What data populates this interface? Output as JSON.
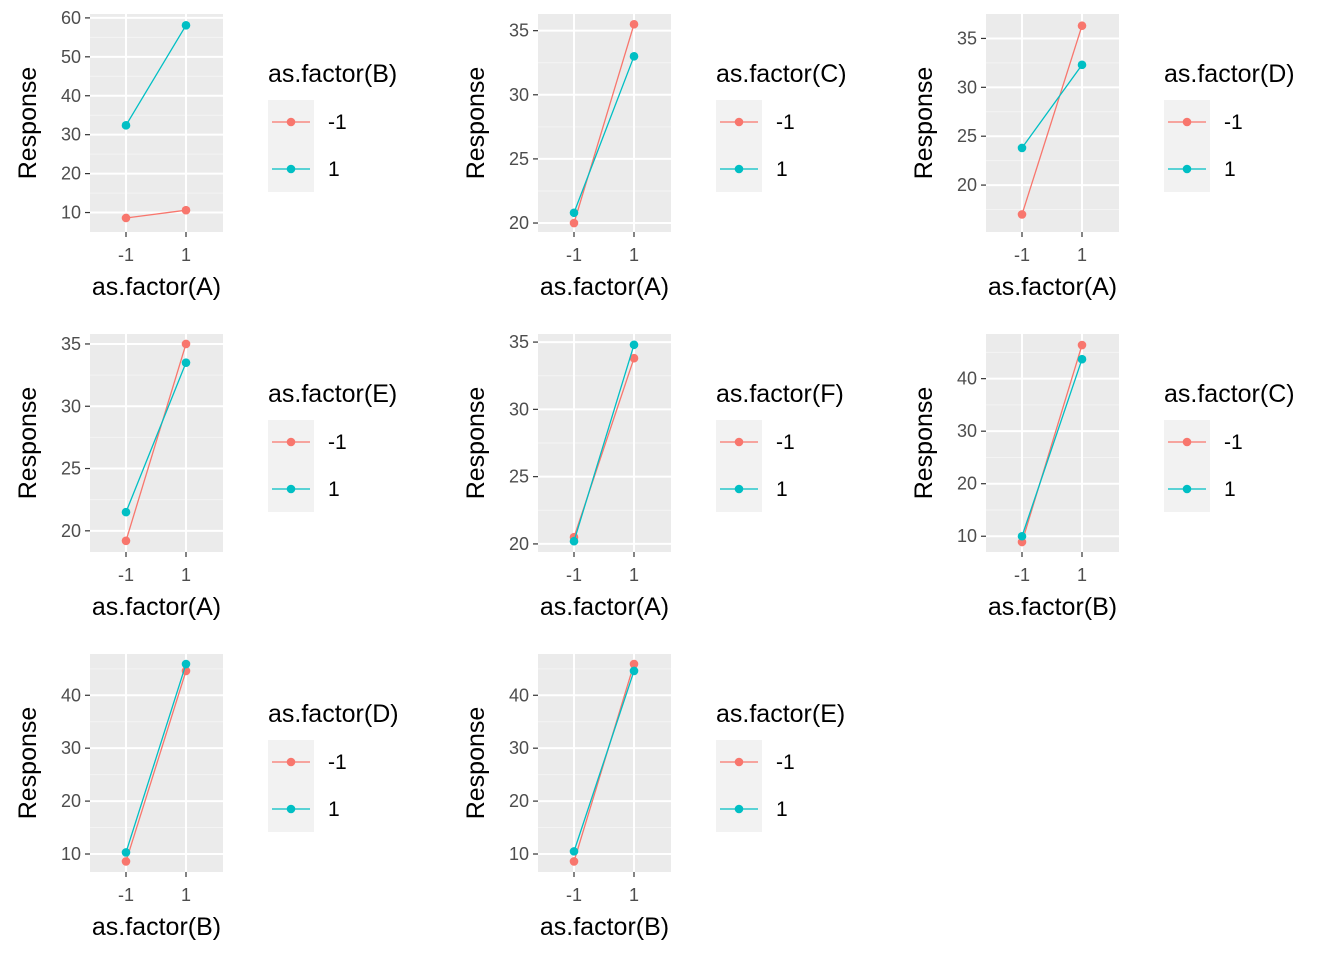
{
  "colors": {
    "panel_bg": "#ebebeb",
    "grid_major": "#ffffff",
    "grid_minor": "#f4f4f4",
    "legend_key_bg": "#f2f2f2",
    "level_neg": "#f8766d",
    "level_pos": "#00bfc4"
  },
  "chart_data": [
    {
      "type": "line",
      "xlabel": "as.factor(A)",
      "ylabel": "Response",
      "categories": [
        "-1",
        "1"
      ],
      "ylim": [
        5,
        61
      ],
      "yticks": [
        10,
        20,
        30,
        40,
        50,
        60
      ],
      "grid": true,
      "legend": {
        "title": "as.factor(B)",
        "position": "right"
      },
      "series": [
        {
          "name": "-1",
          "color": "#f8766d",
          "values": [
            8.6,
            10.6
          ]
        },
        {
          "name": "1",
          "color": "#00bfc4",
          "values": [
            32.4,
            58.1
          ]
        }
      ]
    },
    {
      "type": "line",
      "xlabel": "as.factor(A)",
      "ylabel": "Response",
      "categories": [
        "-1",
        "1"
      ],
      "ylim": [
        19.3,
        36.3
      ],
      "yticks": [
        20,
        25,
        30,
        35
      ],
      "grid": true,
      "legend": {
        "title": "as.factor(C)",
        "position": "right"
      },
      "series": [
        {
          "name": "-1",
          "color": "#f8766d",
          "values": [
            20.0,
            35.5
          ]
        },
        {
          "name": "1",
          "color": "#00bfc4",
          "values": [
            20.8,
            33.0
          ]
        }
      ]
    },
    {
      "type": "line",
      "xlabel": "as.factor(A)",
      "ylabel": "Response",
      "categories": [
        "-1",
        "1"
      ],
      "ylim": [
        15.2,
        37.5
      ],
      "yticks": [
        20,
        25,
        30,
        35
      ],
      "grid": true,
      "legend": {
        "title": "as.factor(D)",
        "position": "right"
      },
      "series": [
        {
          "name": "-1",
          "color": "#f8766d",
          "values": [
            17.0,
            36.3
          ]
        },
        {
          "name": "1",
          "color": "#00bfc4",
          "values": [
            23.8,
            32.3
          ]
        }
      ]
    },
    {
      "type": "line",
      "xlabel": "as.factor(A)",
      "ylabel": "Response",
      "categories": [
        "-1",
        "1"
      ],
      "ylim": [
        18.3,
        35.8
      ],
      "yticks": [
        20,
        25,
        30,
        35
      ],
      "grid": true,
      "legend": {
        "title": "as.factor(E)",
        "position": "right"
      },
      "series": [
        {
          "name": "-1",
          "color": "#f8766d",
          "values": [
            19.2,
            35.0
          ]
        },
        {
          "name": "1",
          "color": "#00bfc4",
          "values": [
            21.5,
            33.5
          ]
        }
      ]
    },
    {
      "type": "line",
      "xlabel": "as.factor(A)",
      "ylabel": "Response",
      "categories": [
        "-1",
        "1"
      ],
      "ylim": [
        19.4,
        35.6
      ],
      "yticks": [
        20,
        25,
        30,
        35
      ],
      "grid": true,
      "legend": {
        "title": "as.factor(F)",
        "position": "right"
      },
      "series": [
        {
          "name": "-1",
          "color": "#f8766d",
          "values": [
            20.5,
            33.8
          ]
        },
        {
          "name": "1",
          "color": "#00bfc4",
          "values": [
            20.2,
            34.8
          ]
        }
      ]
    },
    {
      "type": "line",
      "xlabel": "as.factor(B)",
      "ylabel": "Response",
      "categories": [
        "-1",
        "1"
      ],
      "ylim": [
        7.0,
        48.5
      ],
      "yticks": [
        10,
        20,
        30,
        40
      ],
      "grid": true,
      "legend": {
        "title": "as.factor(C)",
        "position": "right"
      },
      "series": [
        {
          "name": "-1",
          "color": "#f8766d",
          "values": [
            8.9,
            46.4
          ]
        },
        {
          "name": "1",
          "color": "#00bfc4",
          "values": [
            10.0,
            43.7
          ]
        }
      ]
    },
    {
      "type": "line",
      "xlabel": "as.factor(B)",
      "ylabel": "Response",
      "categories": [
        "-1",
        "1"
      ],
      "ylim": [
        6.6,
        47.8
      ],
      "yticks": [
        10,
        20,
        30,
        40
      ],
      "grid": true,
      "legend": {
        "title": "as.factor(D)",
        "position": "right"
      },
      "series": [
        {
          "name": "-1",
          "color": "#f8766d",
          "values": [
            8.6,
            44.6
          ]
        },
        {
          "name": "1",
          "color": "#00bfc4",
          "values": [
            10.3,
            45.9
          ]
        }
      ]
    },
    {
      "type": "line",
      "xlabel": "as.factor(B)",
      "ylabel": "Response",
      "categories": [
        "-1",
        "1"
      ],
      "ylim": [
        6.6,
        47.8
      ],
      "yticks": [
        10,
        20,
        30,
        40
      ],
      "grid": true,
      "legend": {
        "title": "as.factor(E)",
        "position": "right"
      },
      "series": [
        {
          "name": "-1",
          "color": "#f8766d",
          "values": [
            8.6,
            45.9
          ]
        },
        {
          "name": "1",
          "color": "#00bfc4",
          "values": [
            10.5,
            44.6
          ]
        }
      ]
    }
  ]
}
